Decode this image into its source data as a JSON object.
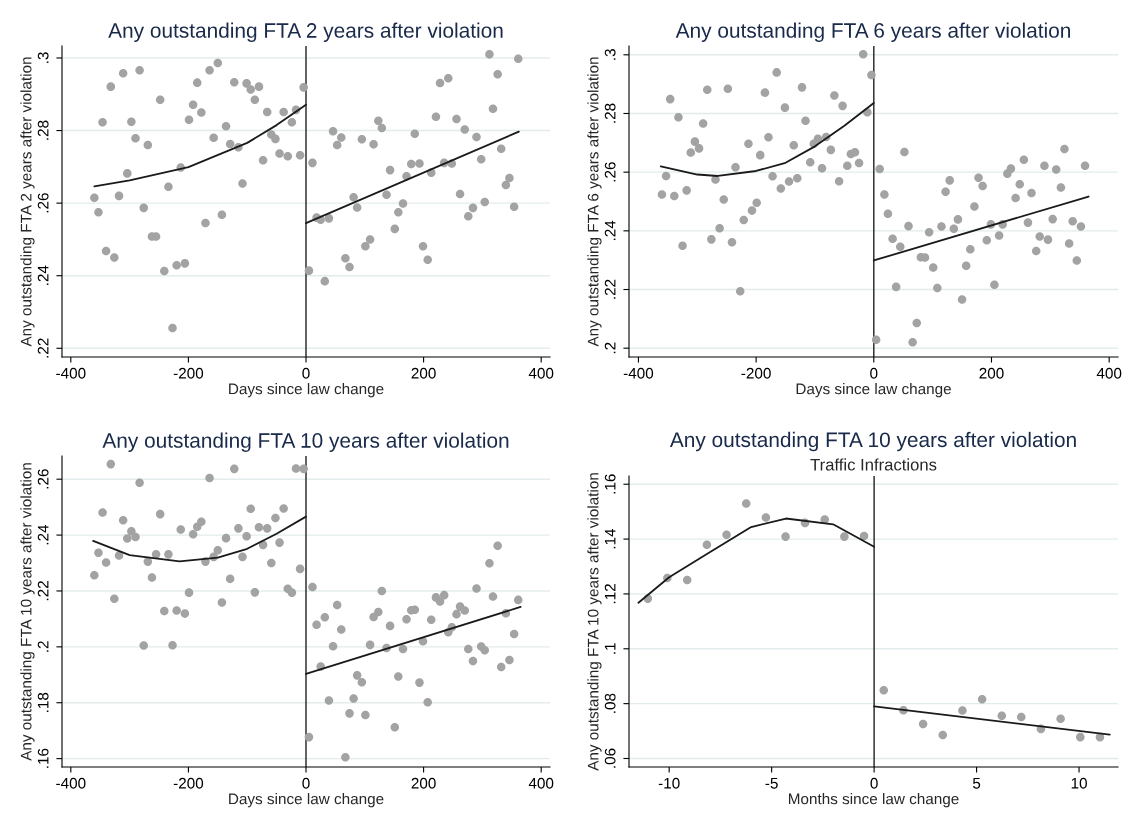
{
  "chart_data": [
    {
      "type": "scatter",
      "title": "Any outstanding FTA 2 years after violation",
      "xlabel": "Days since law change",
      "ylabel": "Any outstanding FTA 2 years after violation",
      "xlim": [
        -415,
        415
      ],
      "ylim": [
        0.2176,
        0.3033
      ],
      "xticks": [
        -400,
        -200,
        0,
        200,
        400
      ],
      "yticks": [
        {
          "value": 0.22,
          "label": ".22"
        },
        {
          "value": 0.24,
          "label": ".24"
        },
        {
          "value": 0.26,
          "label": ".26"
        },
        {
          "value": 0.28,
          "label": ".28"
        },
        {
          "value": 0.3,
          "label": ".3"
        }
      ],
      "grid": "y",
      "marker": "circle",
      "ref_lines": [
        {
          "axis": "x",
          "value": 0,
          "color": "#333333"
        }
      ],
      "series": [
        {
          "type": "scatter",
          "color": "#a3a3a3",
          "x": [
            -360,
            -353,
            -346,
            -340,
            -332,
            -326,
            -318,
            -311,
            -304,
            -297,
            -290,
            -283,
            -276,
            -269,
            -262,
            -255,
            -248,
            -241,
            -234,
            -227,
            -220,
            -213,
            -206,
            -199,
            -192,
            -185,
            -178,
            -171,
            -164,
            -157,
            -150,
            -143,
            -136,
            -129,
            -122,
            -115,
            -108,
            -101,
            -94,
            -87,
            -80,
            -73,
            -66,
            -59,
            -52,
            -45,
            -38,
            -31,
            -24,
            -17,
            -10,
            -4,
            5,
            11,
            18,
            25,
            32,
            39,
            46,
            53,
            60,
            67,
            74,
            81,
            87,
            95,
            101,
            109,
            115,
            123,
            129,
            137,
            143,
            151,
            157,
            165,
            171,
            179,
            185,
            193,
            199,
            207,
            213,
            221,
            228,
            235,
            242,
            248,
            256,
            262,
            270,
            276,
            284,
            290,
            298,
            304,
            312,
            318,
            326,
            332,
            340,
            346,
            354,
            361
          ],
          "values": [
            0.2615,
            0.2575,
            0.2823,
            0.2468,
            0.2921,
            0.245,
            0.262,
            0.2958,
            0.2682,
            0.2824,
            0.2779,
            0.2966,
            0.2587,
            0.276,
            0.2508,
            0.2508,
            0.2885,
            0.2413,
            0.2645,
            0.2256,
            0.2429,
            0.2698,
            0.2434,
            0.283,
            0.2871,
            0.2932,
            0.285,
            0.2545,
            0.2966,
            0.278,
            0.2986,
            0.2568,
            0.2812,
            0.2763,
            0.2933,
            0.2754,
            0.2654,
            0.293,
            0.2913,
            0.2885,
            0.2921,
            0.2718,
            0.2851,
            0.2789,
            0.2777,
            0.2737,
            0.2851,
            0.2729,
            0.2823,
            0.2857,
            0.2732,
            0.2919,
            0.2414,
            0.2711,
            0.256,
            0.2554,
            0.2385,
            0.2558,
            0.2798,
            0.276,
            0.2781,
            0.2448,
            0.2424,
            0.2616,
            0.2588,
            0.2776,
            0.2481,
            0.25,
            0.2762,
            0.2827,
            0.2807,
            0.2623,
            0.2691,
            0.2529,
            0.2575,
            0.2599,
            0.2674,
            0.2708,
            0.2791,
            0.2709,
            0.2481,
            0.2444,
            0.2684,
            0.2838,
            0.2931,
            0.2711,
            0.2944,
            0.2709,
            0.2832,
            0.2625,
            0.2803,
            0.2564,
            0.2587,
            0.2782,
            0.2721,
            0.2603,
            0.301,
            0.286,
            0.2955,
            0.275,
            0.265,
            0.2669,
            0.259,
            0.2998
          ]
        },
        {
          "type": "line",
          "color": "#1a1a1a",
          "marker": "none",
          "x": [
            -360,
            -300,
            -200,
            -100,
            -50,
            0
          ],
          "values": [
            0.2646,
            0.2663,
            0.2699,
            0.2766,
            0.2815,
            0.2871
          ]
        },
        {
          "type": "line",
          "color": "#1a1a1a",
          "marker": "none",
          "x": [
            0,
            362
          ],
          "values": [
            0.2545,
            0.2797
          ]
        }
      ]
    },
    {
      "type": "scatter",
      "title": "Any outstanding FTA 6 years after violation",
      "xlabel": "Days since law change",
      "ylabel": "Any outstanding FTA 6 years after violation",
      "xlim": [
        -416,
        415
      ],
      "ylim": [
        0.197,
        0.303
      ],
      "xticks": [
        -400,
        -200,
        0,
        200,
        400
      ],
      "yticks": [
        {
          "value": 0.2,
          "label": ".2"
        },
        {
          "value": 0.22,
          "label": ".22"
        },
        {
          "value": 0.24,
          "label": ".24"
        },
        {
          "value": 0.26,
          "label": ".26"
        },
        {
          "value": 0.28,
          "label": ".28"
        },
        {
          "value": 0.3,
          "label": ".3"
        }
      ],
      "grid": "y",
      "marker": "circle",
      "ref_lines": [
        {
          "axis": "x",
          "value": 0,
          "color": "#333333"
        }
      ],
      "series": [
        {
          "type": "scatter",
          "color": "#a3a3a3",
          "x": [
            -360,
            -353,
            -346,
            -339,
            -332,
            -325,
            -318,
            -311,
            -304,
            -297,
            -290,
            -283,
            -276,
            -269,
            -262,
            -255,
            -248,
            -241,
            -235,
            -227,
            -221,
            -213,
            -207,
            -199,
            -193,
            -185,
            -179,
            -172,
            -165,
            -158,
            -151,
            -144,
            -136,
            -130,
            -122,
            -116,
            -108,
            -102,
            -95,
            -88,
            -81,
            -73,
            -67,
            -59,
            -53,
            -45,
            -39,
            -32,
            -25,
            -18,
            -11,
            -4,
            4,
            10,
            18,
            24,
            32,
            38,
            45,
            52,
            59,
            66,
            73,
            80,
            87,
            94,
            101,
            108,
            115,
            122,
            129,
            136,
            143,
            150,
            157,
            164,
            171,
            178,
            185,
            192,
            199,
            205,
            213,
            219,
            227,
            233,
            241,
            248,
            255,
            262,
            268,
            276,
            282,
            290,
            296,
            304,
            310,
            318,
            324,
            332,
            338,
            345,
            352,
            359
          ],
          "values": [
            0.2524,
            0.2587,
            0.2849,
            0.2519,
            0.2787,
            0.2349,
            0.2538,
            0.2667,
            0.2704,
            0.2681,
            0.2766,
            0.2881,
            0.2371,
            0.2575,
            0.2409,
            0.2507,
            0.2884,
            0.2361,
            0.2617,
            0.2194,
            0.2437,
            0.2697,
            0.2469,
            0.2496,
            0.2658,
            0.2871,
            0.2719,
            0.2586,
            0.294,
            0.2544,
            0.282,
            0.2568,
            0.2692,
            0.2579,
            0.2889,
            0.2775,
            0.2634,
            0.2697,
            0.2714,
            0.2613,
            0.272,
            0.2676,
            0.2861,
            0.2569,
            0.2826,
            0.2622,
            0.2662,
            0.2668,
            0.2631,
            0.3002,
            0.2804,
            0.2931,
            0.2029,
            0.2611,
            0.2524,
            0.2458,
            0.2373,
            0.2209,
            0.2346,
            0.2669,
            0.2416,
            0.202,
            0.2086,
            0.231,
            0.2309,
            0.2395,
            0.2275,
            0.2205,
            0.2415,
            0.2533,
            0.2572,
            0.2407,
            0.2439,
            0.2166,
            0.2281,
            0.2337,
            0.2483,
            0.2581,
            0.2553,
            0.2368,
            0.2422,
            0.2216,
            0.2384,
            0.2422,
            0.2595,
            0.2612,
            0.2512,
            0.2559,
            0.2642,
            0.2428,
            0.2529,
            0.2331,
            0.2381,
            0.2622,
            0.237,
            0.244,
            0.2609,
            0.2548,
            0.2679,
            0.2357,
            0.2433,
            0.2299,
            0.2415,
            0.2622
          ]
        },
        {
          "type": "line",
          "color": "#1a1a1a",
          "marker": "none",
          "x": [
            -362,
            -300,
            -265,
            -200,
            -150,
            -100,
            -50,
            0
          ],
          "values": [
            0.262,
            0.2592,
            0.2587,
            0.2604,
            0.2632,
            0.2688,
            0.2758,
            0.2836
          ]
        },
        {
          "type": "line",
          "color": "#1a1a1a",
          "marker": "none",
          "x": [
            0,
            365
          ],
          "values": [
            0.2299,
            0.2517
          ]
        }
      ]
    },
    {
      "type": "scatter",
      "title": "Any outstanding FTA 10 years after violation",
      "xlabel": "Days since law change",
      "ylabel": "Any outstanding FTA 10 years after violation",
      "xlim": [
        -415,
        415
      ],
      "ylim": [
        0.157,
        0.2683
      ],
      "xticks": [
        -400,
        -200,
        0,
        200,
        400
      ],
      "yticks": [
        {
          "value": 0.16,
          "label": ".16"
        },
        {
          "value": 0.18,
          "label": ".18"
        },
        {
          "value": 0.2,
          "label": ".2"
        },
        {
          "value": 0.22,
          "label": ".22"
        },
        {
          "value": 0.24,
          "label": ".24"
        },
        {
          "value": 0.26,
          "label": ".26"
        }
      ],
      "grid": "y",
      "marker": "circle",
      "ref_lines": [
        {
          "axis": "x",
          "value": 0,
          "color": "#333333"
        }
      ],
      "series": [
        {
          "type": "scatter",
          "color": "#a3a3a3",
          "x": [
            -360,
            -353,
            -346,
            -340,
            -332,
            -326,
            -318,
            -311,
            -304,
            -297,
            -290,
            -283,
            -276,
            -269,
            -262,
            -255,
            -248,
            -241,
            -234,
            -227,
            -220,
            -213,
            -206,
            -199,
            -192,
            -185,
            -178,
            -171,
            -164,
            -157,
            -150,
            -143,
            -136,
            -129,
            -122,
            -115,
            -108,
            -101,
            -94,
            -87,
            -80,
            -73,
            -66,
            -59,
            -52,
            -45,
            -38,
            -31,
            -24,
            -17,
            -10,
            -4,
            5,
            11,
            18,
            25,
            32,
            39,
            46,
            53,
            60,
            67,
            74,
            81,
            87,
            95,
            101,
            109,
            115,
            123,
            129,
            137,
            143,
            151,
            157,
            165,
            171,
            179,
            185,
            193,
            199,
            207,
            213,
            221,
            228,
            235,
            242,
            248,
            256,
            262,
            270,
            276,
            284,
            290,
            298,
            304,
            312,
            318,
            326,
            332,
            340,
            346,
            354,
            361
          ],
          "values": [
            0.2256,
            0.2337,
            0.2481,
            0.2302,
            0.2654,
            0.2172,
            0.2327,
            0.2453,
            0.2388,
            0.2414,
            0.2393,
            0.2587,
            0.2005,
            0.2305,
            0.2248,
            0.2331,
            0.2475,
            0.2128,
            0.2331,
            0.2006,
            0.213,
            0.242,
            0.2119,
            0.2194,
            0.2403,
            0.243,
            0.2448,
            0.2305,
            0.2604,
            0.2322,
            0.2346,
            0.2159,
            0.2389,
            0.2244,
            0.2637,
            0.2424,
            0.2322,
            0.2396,
            0.2494,
            0.2195,
            0.2428,
            0.2365,
            0.2424,
            0.23,
            0.2461,
            0.2373,
            0.2495,
            0.2208,
            0.2194,
            0.2638,
            0.2279,
            0.2637,
            0.1677,
            0.2214,
            0.2079,
            0.193,
            0.2106,
            0.1808,
            0.2002,
            0.215,
            0.2062,
            0.1605,
            0.1762,
            0.1815,
            0.1898,
            0.1873,
            0.1756,
            0.2007,
            0.2107,
            0.2125,
            0.22,
            0.1996,
            0.2075,
            0.1712,
            0.1894,
            0.1992,
            0.2099,
            0.2131,
            0.2133,
            0.1872,
            0.202,
            0.1802,
            0.2097,
            0.2177,
            0.2162,
            0.2185,
            0.2052,
            0.207,
            0.2117,
            0.2144,
            0.213,
            0.1992,
            0.1949,
            0.2209,
            0.2001,
            0.1988,
            0.2299,
            0.218,
            0.2362,
            0.1928,
            0.212,
            0.1953,
            0.2046,
            0.2168
          ]
        },
        {
          "type": "line",
          "color": "#1a1a1a",
          "marker": "none",
          "x": [
            -362,
            -300,
            -215,
            -150,
            -100,
            -50,
            0
          ],
          "values": [
            0.2379,
            0.2328,
            0.2306,
            0.2319,
            0.2351,
            0.2405,
            0.2466
          ]
        },
        {
          "type": "line",
          "color": "#1a1a1a",
          "marker": "none",
          "x": [
            0,
            365
          ],
          "values": [
            0.1903,
            0.2143
          ]
        }
      ]
    },
    {
      "type": "scatter",
      "title": "Any outstanding FTA 10 years after violation",
      "subtitle": "Traffic Infractions",
      "xlabel": "Months since law change",
      "ylabel": "Any outstanding FTA 10 years after violation",
      "xlim": [
        -11.96,
        11.9
      ],
      "ylim": [
        0.0569,
        0.163
      ],
      "xticks": [
        -10,
        -5,
        0,
        5,
        10
      ],
      "yticks": [
        {
          "value": 0.06,
          "label": ".06"
        },
        {
          "value": 0.08,
          "label": ".08"
        },
        {
          "value": 0.1,
          "label": ".1"
        },
        {
          "value": 0.12,
          "label": ".12"
        },
        {
          "value": 0.14,
          "label": ".14"
        },
        {
          "value": 0.16,
          "label": ".16"
        }
      ],
      "grid": "y",
      "marker": "circle",
      "ref_lines": [
        {
          "axis": "x",
          "value": 0,
          "color": "#333333"
        }
      ],
      "series": [
        {
          "type": "scatter",
          "color": "#a3a3a3",
          "x": [
            -11.04,
            -10.09,
            -9.12,
            -8.16,
            -7.2,
            -6.24,
            -5.28,
            -4.32,
            -3.37,
            -2.41,
            -1.45,
            -0.49,
            0.47,
            1.43,
            2.39,
            3.35,
            4.31,
            5.27,
            6.23,
            7.18,
            8.14,
            9.1,
            10.06,
            11.02
          ],
          "values": [
            0.1183,
            0.1258,
            0.1251,
            0.1379,
            0.1416,
            0.153,
            0.1479,
            0.1409,
            0.1459,
            0.1471,
            0.1409,
            0.1411,
            0.0849,
            0.0776,
            0.0726,
            0.0686,
            0.0775,
            0.0816,
            0.0756,
            0.0751,
            0.0708,
            0.0745,
            0.0678,
            0.0678
          ]
        },
        {
          "type": "line",
          "color": "#1a1a1a",
          "marker": "none",
          "x": [
            -11.5,
            -10,
            -8,
            -6,
            -4.3,
            -2,
            0
          ],
          "values": [
            0.1168,
            0.1261,
            0.1353,
            0.1444,
            0.1475,
            0.1454,
            0.1372
          ]
        },
        {
          "type": "line",
          "color": "#1a1a1a",
          "marker": "none",
          "x": [
            0,
            11.5
          ],
          "values": [
            0.079,
            0.0687
          ]
        }
      ]
    }
  ]
}
